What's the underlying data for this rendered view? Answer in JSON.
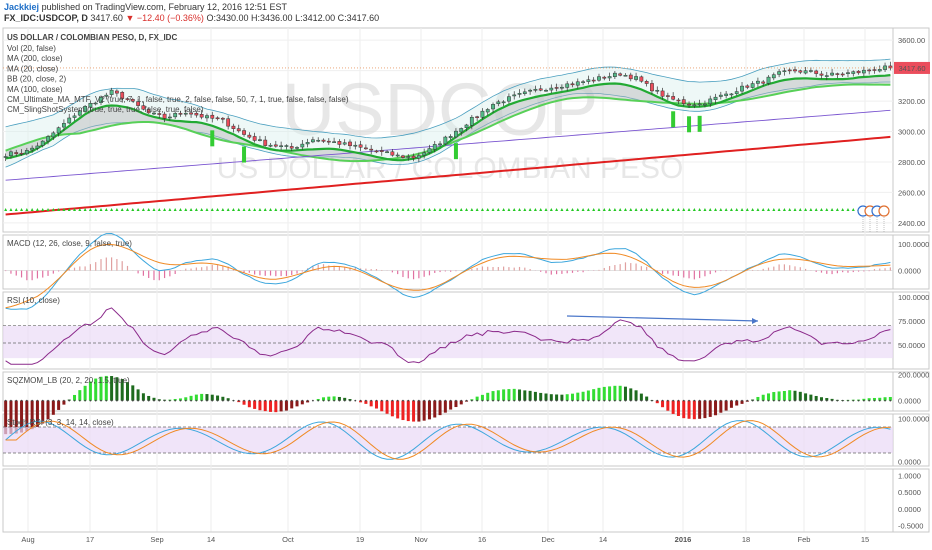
{
  "header": {
    "author": "Jackkiej",
    "published": "published on TradingView.com, February 12, 2016 12:51 EST",
    "symbol": "FX_IDC:USDCOP, D",
    "last": "3417.60",
    "change_arrow": "▼",
    "change": "−12.40 (−0.36%)",
    "open": "O:3430.00",
    "high": "H:3436.00",
    "low": "L:3412.00",
    "close": "C:3417.60"
  },
  "watermark": {
    "big": "USDCOP",
    "small": "US DOLLAR / COLOMBIAN PESO"
  },
  "price_panel": {
    "title": "US DOLLAR / COLOMBIAN PESO, D, FX_IDC",
    "indicators": [
      "Vol (20, false)",
      "MA (200, close)",
      "MA (20, close)",
      "BB (20, close, 2)",
      "MA (100, close)",
      "CM_Ultimate_MA_MTF_V2 (true, 7, 1, false, true, 2, false, false, 50, 7, 1, true, false, false, false)",
      "CM_SlingShotSystem (true, true, true, false, true, false)"
    ],
    "last_price_tag": "3417.60",
    "colors": {
      "up": "#53b987",
      "down": "#eb4d5c",
      "ma200": "#e02020",
      "ma20": "#22aa33",
      "ma100": "#7a55d0",
      "bb": "#4a9fbf"
    }
  },
  "x_axis": {
    "labels": [
      "Aug",
      "17",
      "Sep",
      "14",
      "Oct",
      "19",
      "Nov",
      "16",
      "Dec",
      "14",
      "2016",
      "18",
      "Feb",
      "15"
    ]
  },
  "chart_data": [
    {
      "type": "candlestick",
      "title": "US DOLLAR / COLOMBIAN PESO, D, FX_IDC",
      "y_ticks": [
        2400,
        2600,
        2800,
        3000,
        3200,
        3400,
        3600
      ],
      "y_tick_labels": [
        "2400.00",
        "2600.00",
        "2800.00",
        "3000.00",
        "3200.00",
        "3400.00",
        "3600.00"
      ],
      "ylim": [
        2340,
        3680
      ],
      "anchors": [
        [
          0,
          2850
        ],
        [
          4,
          2870
        ],
        [
          7,
          2930
        ],
        [
          10,
          3020
        ],
        [
          14,
          3140
        ],
        [
          17,
          3200
        ],
        [
          20,
          3260
        ],
        [
          23,
          3210
        ],
        [
          27,
          3120
        ],
        [
          30,
          3090
        ],
        [
          34,
          3130
        ],
        [
          37,
          3100
        ],
        [
          41,
          3070
        ],
        [
          45,
          2980
        ],
        [
          49,
          2920
        ],
        [
          54,
          2890
        ],
        [
          58,
          2950
        ],
        [
          62,
          2930
        ],
        [
          66,
          2900
        ],
        [
          70,
          2870
        ],
        [
          74,
          2840
        ],
        [
          77,
          2830
        ],
        [
          80,
          2880
        ],
        [
          84,
          2980
        ],
        [
          88,
          3080
        ],
        [
          92,
          3180
        ],
        [
          96,
          3230
        ],
        [
          100,
          3270
        ],
        [
          104,
          3300
        ],
        [
          108,
          3320
        ],
        [
          112,
          3350
        ],
        [
          116,
          3380
        ],
        [
          119,
          3350
        ],
        [
          122,
          3280
        ],
        [
          125,
          3220
        ],
        [
          128,
          3190
        ],
        [
          131,
          3180
        ],
        [
          134,
          3220
        ],
        [
          137,
          3260
        ],
        [
          140,
          3300
        ],
        [
          143,
          3330
        ],
        [
          146,
          3380
        ],
        [
          149,
          3400
        ],
        [
          152,
          3390
        ],
        [
          155,
          3370
        ],
        [
          158,
          3380
        ],
        [
          161,
          3390
        ],
        [
          164,
          3410
        ],
        [
          166,
          3417.6
        ]
      ],
      "last_close": 3417.6
    },
    {
      "type": "line",
      "title": "MACD (12, 26, close, 9, false, true)",
      "y_tick_labels": [
        "100.0000",
        "0.0000"
      ],
      "ylim": [
        -70,
        135
      ]
    },
    {
      "type": "line",
      "title": "RSI (10, close)",
      "y_tick_labels": [
        "100.0000",
        "75.0000",
        "50.0000"
      ],
      "ylim": [
        25,
        105
      ],
      "bands": [
        70,
        30
      ]
    },
    {
      "type": "bar",
      "title": "SQZMOM_LB (20, 2, 20, 1.5, true)",
      "y_tick_labels": [
        "200.0000",
        "0.0000"
      ],
      "ylim": [
        -80,
        220
      ]
    },
    {
      "type": "line",
      "title": "Stoch RSI (3, 3, 14, 14, close)",
      "y_tick_labels": [
        "100.0000",
        "0.0000"
      ],
      "ylim": [
        -10,
        110
      ],
      "bands": [
        80,
        20
      ]
    },
    {
      "type": "line",
      "title": "",
      "y_tick_labels": [
        "1.0000",
        "0.5000",
        "0.0000",
        "-0.5000"
      ],
      "ylim": [
        -0.7,
        1.2
      ]
    }
  ]
}
